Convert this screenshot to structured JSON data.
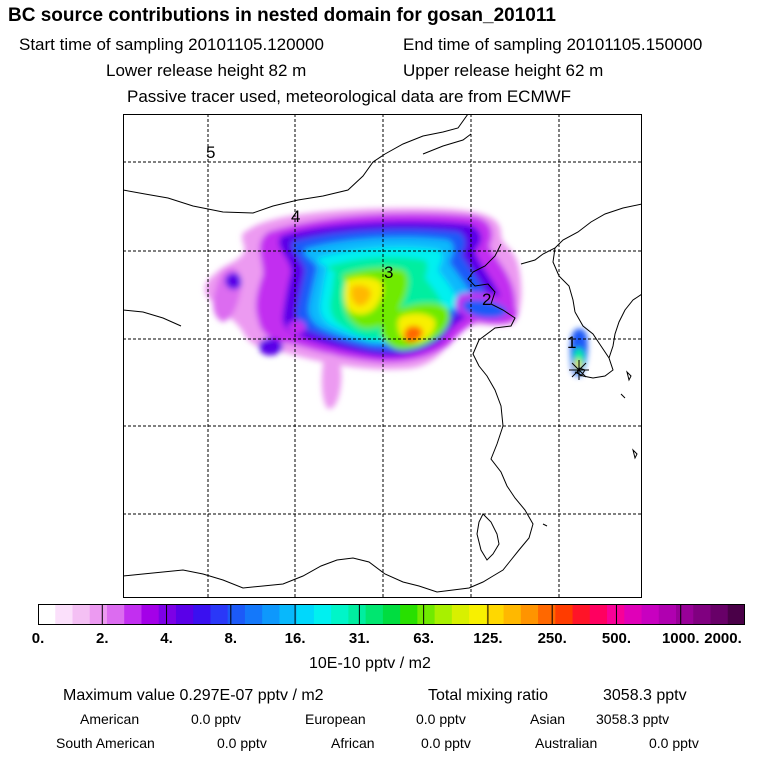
{
  "title": "BC  source contributions in nested domain for gosan_201011",
  "sampling": {
    "start_label": "Start time of sampling 20101105.120000",
    "end_label": "End time of sampling 20101105.150000"
  },
  "release": {
    "lower_label": "Lower release height   82 m",
    "upper_label": "Upper release height   62 m"
  },
  "note": "Passive tracer used, meteorological data are from ECMWF",
  "map": {
    "point_labels": [
      "1",
      "2",
      "3",
      "4",
      "5"
    ],
    "receptor_marker": "asterisk",
    "colors": {
      "border": "#000000",
      "grid": "#000000",
      "coastline": "#000000"
    }
  },
  "colorbar": {
    "tick_labels": [
      "0.",
      "2.",
      "4.",
      "8.",
      "16.",
      "31.",
      "63.",
      "125.",
      "250.",
      "500.",
      "1000.",
      "2000."
    ],
    "colors": [
      "#ffffff",
      "#fbe0fb",
      "#f4c0f4",
      "#ec9af1",
      "#dc6cf0",
      "#c22ff0",
      "#a400e8",
      "#7d00e6",
      "#5a00e8",
      "#3a10f0",
      "#2a38f8",
      "#1c5af8",
      "#1478fa",
      "#0e98fc",
      "#08b8fc",
      "#00d8fc",
      "#00f0f0",
      "#00f5c8",
      "#00eea0",
      "#00e670",
      "#00dd40",
      "#28e000",
      "#70ea00",
      "#a8f000",
      "#d8f000",
      "#f8f000",
      "#ffd800",
      "#ffb800",
      "#ff9400",
      "#ff6800",
      "#ff3c00",
      "#ff1428",
      "#ff0060",
      "#f80098",
      "#e000b8",
      "#c800c0",
      "#b000b0",
      "#980098",
      "#800080",
      "#680068",
      "#4a0048"
    ],
    "unit": "10E-10 pptv / m2"
  },
  "summary": {
    "max_label": "Maximum value  0.297E-07 pptv / m2",
    "total_label": "Total mixing ratio",
    "total_value": "3058.3 pptv"
  },
  "regions": [
    {
      "name": "American",
      "value": "0.0 pptv"
    },
    {
      "name": "European",
      "value": "0.0 pptv"
    },
    {
      "name": "Asian",
      "value": "3058.3 pptv"
    },
    {
      "name": "South American",
      "value": "0.0 pptv"
    },
    {
      "name": "African",
      "value": "0.0 pptv"
    },
    {
      "name": "Australian",
      "value": "0.0 pptv"
    }
  ]
}
